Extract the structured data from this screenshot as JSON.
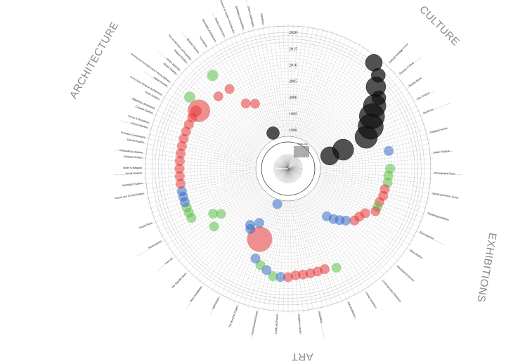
{
  "title_center": "TIMELINE",
  "categories": [
    {
      "name": "ARCHITECTURE",
      "color": "#e5383b"
    },
    {
      "name": "CULTURE",
      "color": "#111111"
    },
    {
      "name": "EXHIBITIONS",
      "color": "#3b6cc7"
    },
    {
      "name": "ART",
      "color": "#5cbf4a"
    }
  ],
  "years": {
    "start": 1990,
    "end": 2020,
    "labels": [
      "1990",
      "1995",
      "2000",
      "2005",
      "2010",
      "2015",
      "2020"
    ]
  },
  "colors": {
    "red": "#e5383b",
    "green": "#5cbf4a",
    "blue": "#3b6cc7",
    "black": "#111111",
    "grid": "#999999"
  },
  "item_count": 180,
  "labels": [
    {
      "item": 130,
      "text": "Hansel and Gretel Pavilion"
    },
    {
      "item": 132,
      "text": "Australian Pavilion"
    },
    {
      "item": 134,
      "text": "Greek Pavilion"
    },
    {
      "item": 135,
      "text": "Made in Belgium"
    },
    {
      "item": 137,
      "text": "German Pavilion"
    },
    {
      "item": 138,
      "text": "Verbundhaus Bauten"
    },
    {
      "item": 140,
      "text": "Danish Pavilion"
    },
    {
      "item": 141,
      "text": "Freedom Cornerstone"
    },
    {
      "item": 143,
      "text": "French Pavilion"
    },
    {
      "item": 144,
      "text": "Gonzo & Brouwhuis"
    },
    {
      "item": 146,
      "text": "Canada Pavilion"
    },
    {
      "item": 147,
      "text": "Migrating Landscapes"
    },
    {
      "item": 149,
      "text": "Dutch Pavilion"
    },
    {
      "item": 150,
      "text": "An Art New Wing for Architecture"
    },
    {
      "item": 152,
      "text": "Japan Pavilion"
    },
    {
      "item": 153,
      "text": "Architecture Possible Here? Home Delivery"
    },
    {
      "item": 155,
      "text": "British Pavilion"
    },
    {
      "item": 156,
      "text": "Venice Biennale"
    },
    {
      "item": 158,
      "text": "Belgian Pavilion"
    },
    {
      "item": 159,
      "text": "The Architecture of Possibility"
    },
    {
      "item": 161,
      "text": "Spanish Pavilion"
    },
    {
      "item": 163,
      "text": "Formations"
    },
    {
      "item": 165,
      "text": "Alternative Architecture"
    },
    {
      "item": 167,
      "text": "Studio Architecture"
    },
    {
      "item": 169,
      "text": "Museum of Modern Architecture"
    },
    {
      "item": 171,
      "text": "Building Communities"
    },
    {
      "item": 173,
      "text": "Urban Landscapes"
    },
    {
      "item": 175,
      "text": "Manifesto"
    },
    {
      "item": 22,
      "text": "Cultural Heritage Forum"
    },
    {
      "item": 25,
      "text": "Festival of Ideas"
    },
    {
      "item": 28,
      "text": "Design Week"
    },
    {
      "item": 31,
      "text": "Film Festival"
    },
    {
      "item": 34,
      "text": "Book Fair"
    },
    {
      "item": 38,
      "text": "Theatre Festival"
    },
    {
      "item": 42,
      "text": "Music Festival"
    },
    {
      "item": 46,
      "text": "Photography Days"
    },
    {
      "item": 50,
      "text": "Global Exhibition Series"
    },
    {
      "item": 54,
      "text": "Travelling Exhibition"
    },
    {
      "item": 58,
      "text": "Retrospective"
    },
    {
      "item": 62,
      "text": "Open Studios"
    },
    {
      "item": 66,
      "text": "International Survey"
    },
    {
      "item": 70,
      "text": "Contemporary Showcase"
    },
    {
      "item": 74,
      "text": "Group Exhibition"
    },
    {
      "item": 78,
      "text": "Solo Exhibition"
    },
    {
      "item": 84,
      "text": "Installation"
    },
    {
      "item": 88,
      "text": "Sculpture Garden"
    },
    {
      "item": 92,
      "text": "Public Art Project"
    },
    {
      "item": 96,
      "text": "Commissioned Mural"
    },
    {
      "item": 100,
      "text": "The Weather Project"
    },
    {
      "item": 104,
      "text": "Light Works"
    },
    {
      "item": 108,
      "text": "Video Installation"
    },
    {
      "item": 112,
      "text": "Site Specific Work"
    },
    {
      "item": 116,
      "text": "Land Art"
    },
    {
      "item": 120,
      "text": "Performance"
    },
    {
      "item": 124,
      "text": "Sound Piece"
    }
  ],
  "events": [
    {
      "item": 19.5,
      "year": 2020,
      "size": 12,
      "color": "black"
    },
    {
      "item": 22,
      "year": 2018,
      "size": 10,
      "color": "black"
    },
    {
      "item": 23.5,
      "year": 2015,
      "size": 14,
      "color": "black"
    },
    {
      "item": 26,
      "year": 2013.5,
      "size": 10,
      "color": "black"
    },
    {
      "item": 27,
      "year": 2011,
      "size": 16,
      "color": "black"
    },
    {
      "item": 29,
      "year": 2008.5,
      "size": 18,
      "color": "black"
    },
    {
      "item": 31.5,
      "year": 2006.6,
      "size": 18,
      "color": "black"
    },
    {
      "item": 34,
      "year": 2004,
      "size": 16,
      "color": "black"
    },
    {
      "item": 35.5,
      "year": 1996,
      "size": 15,
      "color": "black"
    },
    {
      "item": 36.5,
      "year": 1991.5,
      "size": 13,
      "color": "black"
    },
    {
      "item": 168.5,
      "year": 1990,
      "size": 9,
      "color": "black"
    },
    {
      "item": 40,
      "year": 2009.5,
      "size": 7,
      "color": "blue"
    },
    {
      "item": 45,
      "year": 2009.5,
      "size": 7,
      "color": "green"
    },
    {
      "item": 47,
      "year": 2009,
      "size": 7,
      "color": "green"
    },
    {
      "item": 49,
      "year": 2009,
      "size": 7,
      "color": "green"
    },
    {
      "item": 51,
      "year": 2008.5,
      "size": 7,
      "color": "red"
    },
    {
      "item": 53,
      "year": 2008.5,
      "size": 7,
      "color": "red"
    },
    {
      "item": 55,
      "year": 2008,
      "size": 7,
      "color": "red"
    },
    {
      "item": 56.5,
      "year": 2008,
      "size": 7,
      "color": "green"
    },
    {
      "item": 58,
      "year": 2008,
      "size": 7,
      "color": "red"
    },
    {
      "item": 60,
      "year": 2005.5,
      "size": 7,
      "color": "red"
    },
    {
      "item": 62,
      "year": 2004.5,
      "size": 7,
      "color": "red"
    },
    {
      "item": 64,
      "year": 2004,
      "size": 7,
      "color": "red"
    },
    {
      "item": 66,
      "year": 2002,
      "size": 7,
      "color": "blue"
    },
    {
      "item": 67.5,
      "year": 2000.5,
      "size": 7,
      "color": "blue"
    },
    {
      "item": 69,
      "year": 1999,
      "size": 7,
      "color": "blue"
    },
    {
      "item": 70.5,
      "year": 1997,
      "size": 7,
      "color": "blue"
    },
    {
      "item": 77,
      "year": 2012,
      "size": 7,
      "color": "green"
    },
    {
      "item": 80,
      "year": 2011,
      "size": 7,
      "color": "red"
    },
    {
      "item": 82,
      "year": 2011,
      "size": 7,
      "color": "red"
    },
    {
      "item": 84,
      "year": 2011,
      "size": 7,
      "color": "red"
    },
    {
      "item": 86,
      "year": 2011,
      "size": 7,
      "color": "red"
    },
    {
      "item": 88,
      "year": 2011,
      "size": 7,
      "color": "red"
    },
    {
      "item": 90,
      "year": 2011.5,
      "size": 7,
      "color": "red"
    },
    {
      "item": 92,
      "year": 2011.5,
      "size": 7,
      "color": "blue"
    },
    {
      "item": 94,
      "year": 2011.5,
      "size": 7,
      "color": "green"
    },
    {
      "item": 96,
      "year": 2010,
      "size": 7,
      "color": "blue"
    },
    {
      "item": 98,
      "year": 2009,
      "size": 7,
      "color": "green"
    },
    {
      "item": 100,
      "year": 2007.5,
      "size": 7,
      "color": "blue"
    },
    {
      "item": 101,
      "year": 2001.5,
      "size": 18,
      "color": "red"
    },
    {
      "item": 104,
      "year": 1997,
      "size": 7,
      "color": "blue"
    },
    {
      "item": 106,
      "year": 2000,
      "size": 7,
      "color": "blue"
    },
    {
      "item": 107,
      "year": 1999,
      "size": 7,
      "color": "blue"
    },
    {
      "item": 98.5,
      "year": 1989.5,
      "size": 7,
      "color": "blue"
    },
    {
      "item": 116,
      "year": 2007,
      "size": 7,
      "color": "green"
    },
    {
      "item": 118,
      "year": 2003,
      "size": 7,
      "color": "green"
    },
    {
      "item": 119.5,
      "year": 2005,
      "size": 7,
      "color": "green"
    },
    {
      "item": 121.5,
      "year": 2011.5,
      "size": 7,
      "color": "green"
    },
    {
      "item": 123,
      "year": 2011.5,
      "size": 7,
      "color": "green"
    },
    {
      "item": 124.5,
      "year": 2011.5,
      "size": 7,
      "color": "green"
    },
    {
      "item": 126,
      "year": 2011.5,
      "size": 7,
      "color": "blue"
    },
    {
      "item": 127.5,
      "year": 2011.5,
      "size": 7,
      "color": "blue"
    },
    {
      "item": 129,
      "year": 2011.5,
      "size": 7,
      "color": "blue"
    },
    {
      "item": 131,
      "year": 2011.5,
      "size": 7,
      "color": "red"
    },
    {
      "item": 133,
      "year": 2011.5,
      "size": 7,
      "color": "red"
    },
    {
      "item": 135,
      "year": 2011.5,
      "size": 7,
      "color": "red"
    },
    {
      "item": 137,
      "year": 2011.5,
      "size": 7,
      "color": "red"
    },
    {
      "item": 139,
      "year": 2011.5,
      "size": 7,
      "color": "red"
    },
    {
      "item": 141,
      "year": 2011.5,
      "size": 7,
      "color": "red"
    },
    {
      "item": 143,
      "year": 2011.5,
      "size": 7,
      "color": "red"
    },
    {
      "item": 145,
      "year": 2011.5,
      "size": 7,
      "color": "red"
    },
    {
      "item": 147,
      "year": 2011.5,
      "size": 7,
      "color": "red"
    },
    {
      "item": 149,
      "year": 2011.5,
      "size": 7,
      "color": "red"
    },
    {
      "item": 151,
      "year": 2011.5,
      "size": 8,
      "color": "red"
    },
    {
      "item": 151.5,
      "year": 2010.8,
      "size": 16,
      "color": "red"
    },
    {
      "item": 153,
      "year": 2015.5,
      "size": 8,
      "color": "green"
    },
    {
      "item": 160.5,
      "year": 2015,
      "size": 8,
      "color": "green"
    },
    {
      "item": 158,
      "year": 2009,
      "size": 7,
      "color": "red"
    },
    {
      "item": 161.8,
      "year": 2008.5,
      "size": 7,
      "color": "red"
    },
    {
      "item": 163.5,
      "year": 2002,
      "size": 7,
      "color": "red"
    },
    {
      "item": 166.5,
      "year": 2000.5,
      "size": 7,
      "color": "red"
    }
  ]
}
